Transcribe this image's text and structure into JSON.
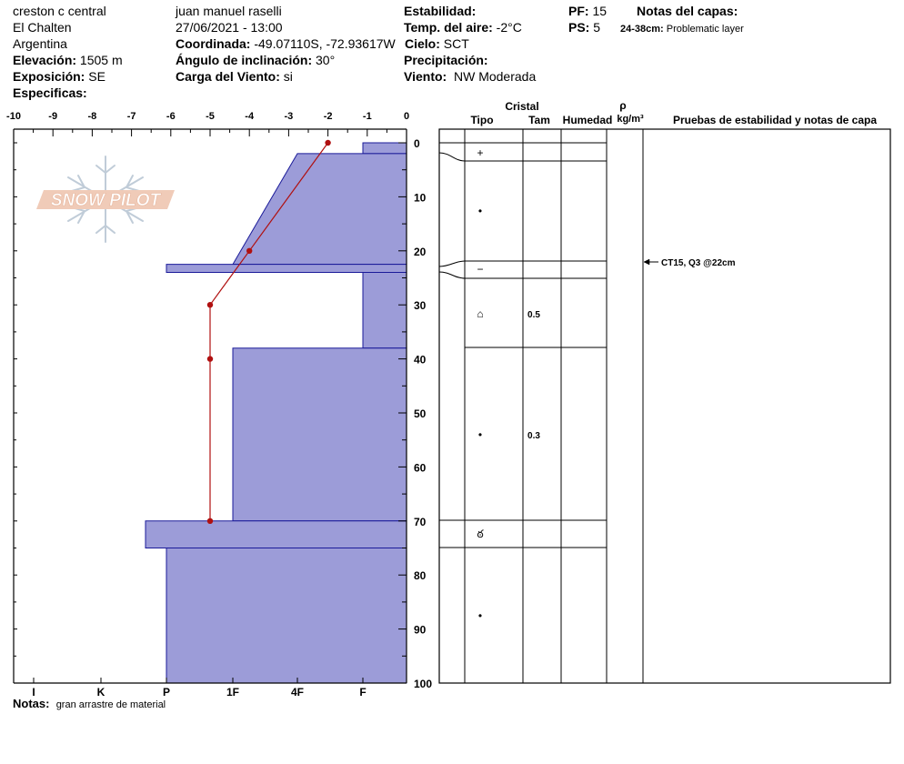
{
  "header": {
    "location": "creston c central",
    "area": "El Chalten",
    "country": "Argentina",
    "elevation_label": "Elevación:",
    "elevation_value": "1505 m",
    "aspect_label": "Exposición:",
    "aspect_value": "SE",
    "specifics_label": "Especificas:",
    "observer": "juan manuel raselli",
    "datetime": "27/06/2021 - 13:00",
    "coord_label": "Coordinada:",
    "coord_value": "-49.07110S, -72.93617W",
    "slope_label": "Ángulo de inclinación:",
    "slope_value": "30°",
    "wind_load_label": "Carga del Viento:",
    "wind_load_value": "si",
    "stability_label": "Estabilidad:",
    "air_temp_label": "Temp. del aire:",
    "air_temp_value": "-2°C",
    "sky_label": "Cielo:",
    "sky_value": "SCT",
    "precip_label": "Precipitación:",
    "wind_label": "Viento:",
    "wind_value": "NW Moderada",
    "pf_label": "PF:",
    "pf_value": "15",
    "ps_label": "PS:",
    "ps_value": "5",
    "layer_notes_label": "Notas del capas:",
    "layer_note_range": "24-38cm:",
    "layer_note_text": "Problematic layer"
  },
  "notes_label": "Notas:",
  "notes_value": "gran arrastre de material",
  "logo_text": "SNOW PILOT",
  "table": {
    "crystal_header": "Cristal",
    "type_header": "Tipo",
    "size_header": "Tam",
    "moisture_header": "Humedad",
    "density_header_symbol": "ρ",
    "density_header_unit": "kg/m³",
    "tests_header": "Pruebas de estabilidad y notas de capa",
    "test_annotation": "CT15, Q3 @22cm"
  },
  "colors": {
    "layer_fill": "#9c9cd8",
    "layer_stroke": "#1a1a99",
    "temp_line": "#b01010"
  },
  "chart_data": {
    "type": "snow_profile",
    "depth_axis": {
      "ticks": [
        0,
        10,
        20,
        30,
        40,
        50,
        60,
        70,
        80,
        90,
        100
      ],
      "range": [
        0,
        100
      ]
    },
    "temp_axis": {
      "ticks": [
        -10,
        -9,
        -8,
        -7,
        -6,
        -5,
        -4,
        -3,
        -2,
        -1,
        0
      ],
      "range": [
        -10,
        0
      ]
    },
    "hardness_axis": {
      "labels": [
        "I",
        "K",
        "P",
        "1F",
        "4F",
        "F"
      ]
    },
    "temperature_profile": [
      {
        "depth": 0,
        "temp": -2
      },
      {
        "depth": 20,
        "temp": -4
      },
      {
        "depth": 30,
        "temp": -5
      },
      {
        "depth": 40,
        "temp": -5
      },
      {
        "depth": 70,
        "temp": -5
      }
    ],
    "layers": [
      {
        "top": 0,
        "bottom": 2,
        "hardness": "F"
      },
      {
        "top": 2,
        "bottom": 22.5,
        "hardness": "4F",
        "hardness_bottom": "1F"
      },
      {
        "top": 22.5,
        "bottom": 24,
        "hardness": "P"
      },
      {
        "top": 24,
        "bottom": 38,
        "hardness": "F"
      },
      {
        "top": 38,
        "bottom": 70,
        "hardness": "1F"
      },
      {
        "top": 70,
        "bottom": 75,
        "hardness": "P-"
      },
      {
        "top": 75,
        "bottom": 100,
        "hardness": "P"
      }
    ],
    "grain_rows": [
      {
        "type_symbol": "+",
        "size": ""
      },
      {
        "type_symbol": "•",
        "size": ""
      },
      {
        "type_symbol": "−",
        "size": ""
      },
      {
        "type_symbol": "⌂",
        "size": "0.5"
      },
      {
        "type_symbol": "•",
        "size": "0.3"
      },
      {
        "type_symbol": "ఠ",
        "size": ""
      },
      {
        "type_symbol": "•",
        "size": ""
      }
    ]
  }
}
